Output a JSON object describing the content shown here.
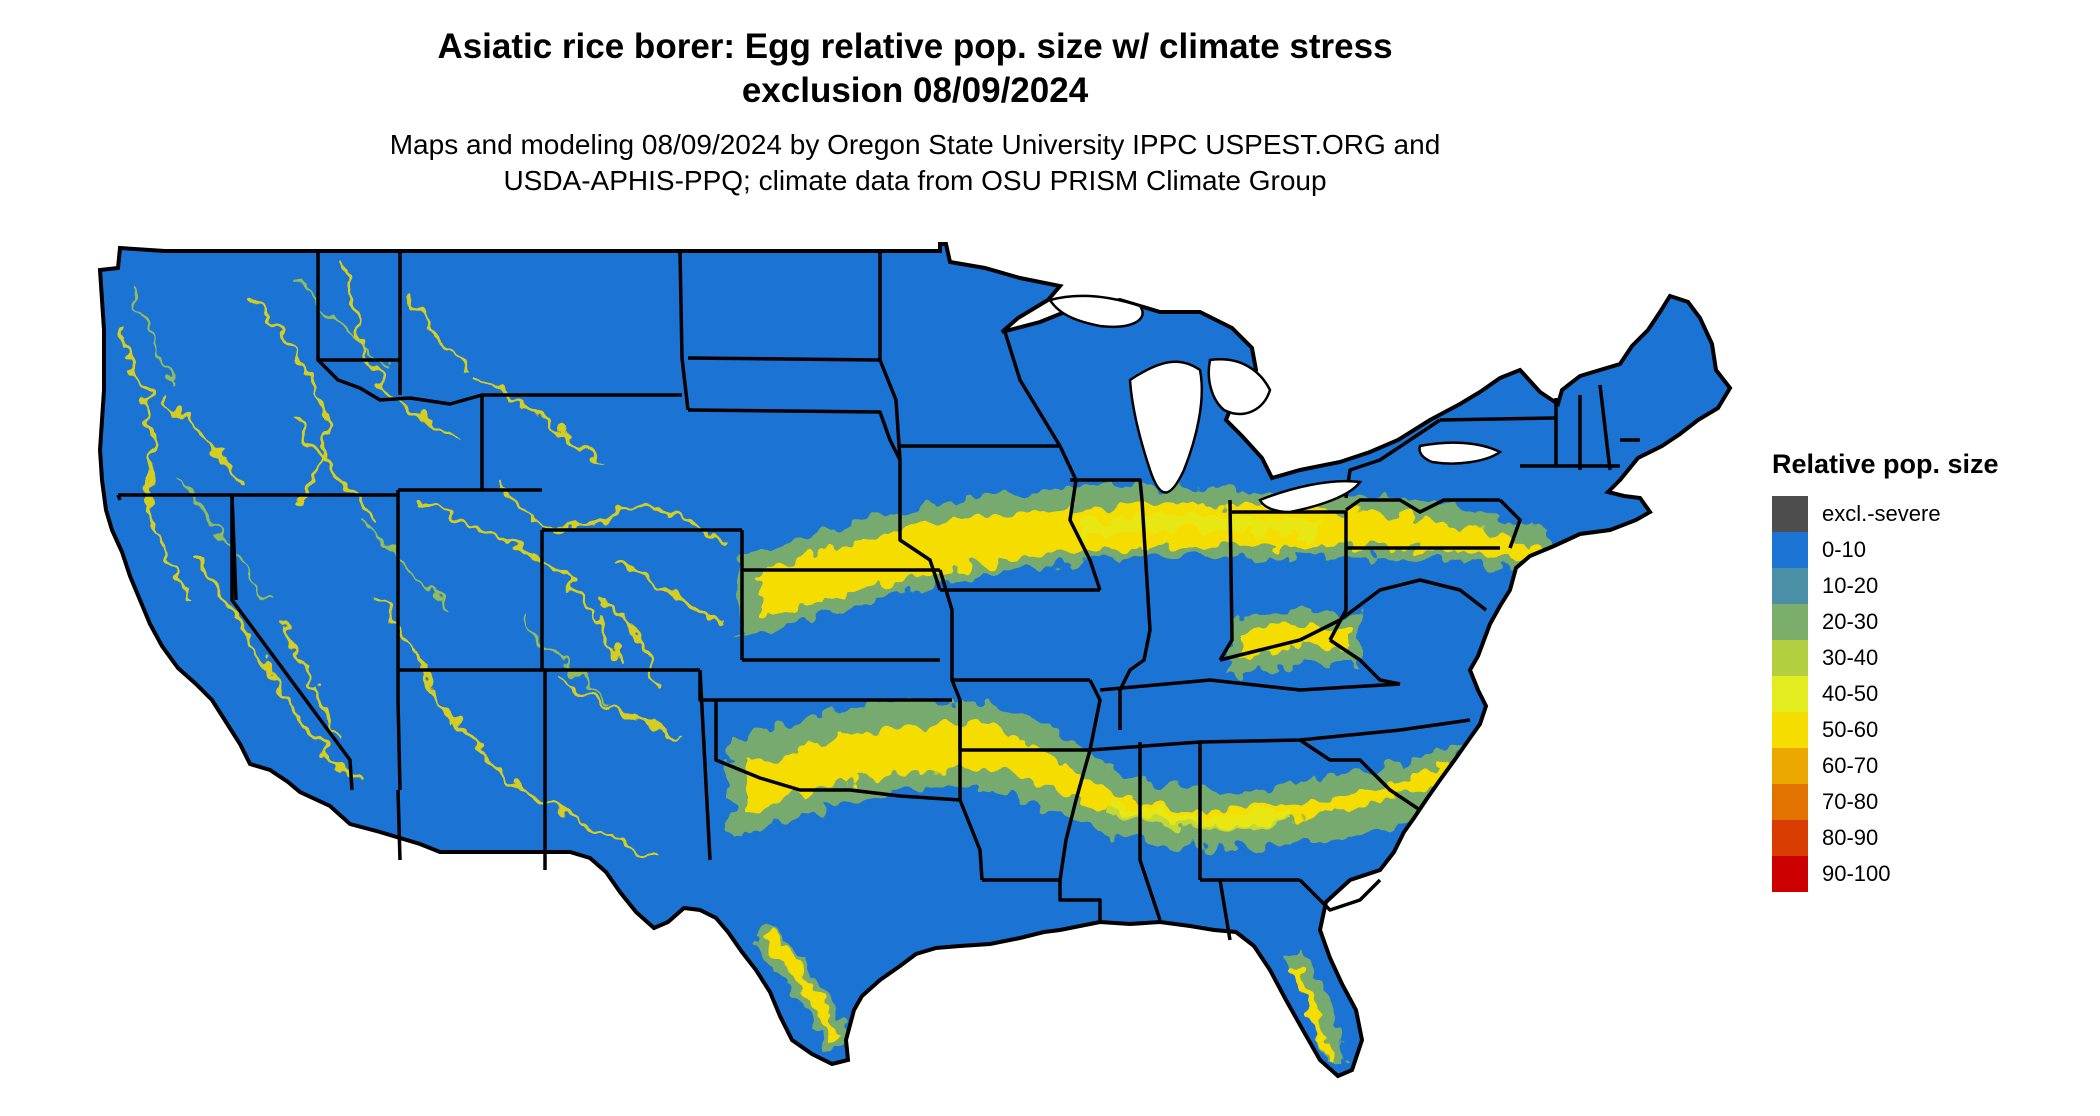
{
  "title": {
    "line1": "Asiatic rice borer: Egg relative pop. size w/ climate stress",
    "line2": "exclusion 08/09/2024"
  },
  "subtitle": {
    "line1": "Maps and modeling 08/09/2024 by Oregon State University IPPC USPEST.ORG and",
    "line2": "USDA-APHIS-PPQ; climate data from OSU PRISM Climate Group"
  },
  "legend": {
    "title": "Relative pop. size",
    "items": [
      {
        "label": "excl.-severe",
        "color": "#4d4d4d"
      },
      {
        "label": "0-10",
        "color": "#1b74d3"
      },
      {
        "label": "10-20",
        "color": "#4b8fa6"
      },
      {
        "label": "20-30",
        "color": "#7bad6b"
      },
      {
        "label": "30-40",
        "color": "#b1cf3e"
      },
      {
        "label": "40-50",
        "color": "#e3ec1e"
      },
      {
        "label": "50-60",
        "color": "#f6dd00"
      },
      {
        "label": "60-70",
        "color": "#eaa800"
      },
      {
        "label": "70-80",
        "color": "#e27300"
      },
      {
        "label": "80-90",
        "color": "#d83c00"
      },
      {
        "label": "90-100",
        "color": "#cc0000"
      }
    ]
  },
  "map": {
    "region": "Conterminous United States",
    "base_color": "#1b74d3",
    "border_color": "#000000"
  }
}
